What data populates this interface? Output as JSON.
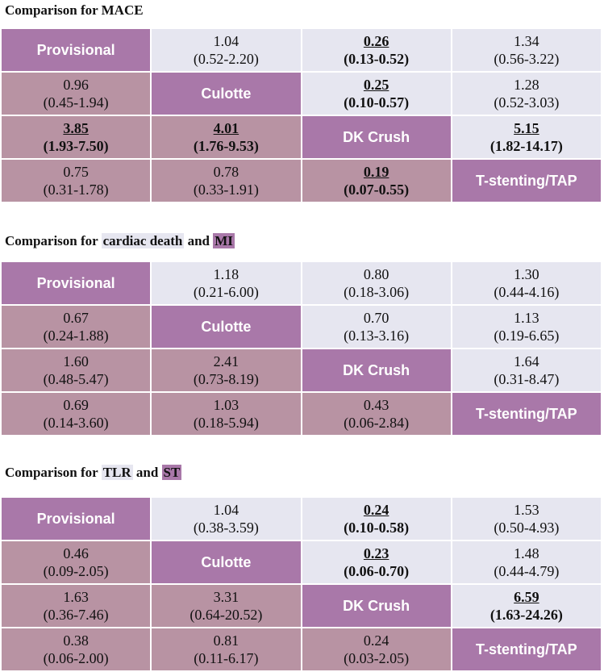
{
  "sections": [
    {
      "heading": {
        "prefix": "Comparison for MACE",
        "light_label": "",
        "join": "",
        "dark_label": ""
      },
      "treatments": [
        "Provisional",
        "Culotte",
        "DK Crush",
        "T-stenting/TAP"
      ],
      "cells": [
        [
          null,
          {
            "est": "1.04",
            "ci": "(0.52-2.20)",
            "sig": false
          },
          {
            "est": "0.26",
            "ci": "(0.13-0.52)",
            "sig": true
          },
          {
            "est": "1.34",
            "ci": "(0.56-3.22)",
            "sig": false
          }
        ],
        [
          {
            "est": "0.96",
            "ci": "(0.45-1.94)",
            "sig": false
          },
          null,
          {
            "est": "0.25",
            "ci": "(0.10-0.57)",
            "sig": true
          },
          {
            "est": "1.28",
            "ci": "(0.52-3.03)",
            "sig": false
          }
        ],
        [
          {
            "est": "3.85",
            "ci": "(1.93-7.50)",
            "sig": true
          },
          {
            "est": "4.01",
            "ci": "(1.76-9.53)",
            "sig": true
          },
          null,
          {
            "est": "5.15",
            "ci": "(1.82-14.17)",
            "sig": true
          }
        ],
        [
          {
            "est": "0.75",
            "ci": "(0.31-1.78)",
            "sig": false
          },
          {
            "est": "0.78",
            "ci": "(0.33-1.91)",
            "sig": false
          },
          {
            "est": "0.19",
            "ci": "(0.07-0.55)",
            "sig": true
          },
          null
        ]
      ]
    },
    {
      "heading": {
        "prefix": "Comparison for ",
        "light_label": "cardiac death",
        "join": " and ",
        "dark_label": "MI"
      },
      "treatments": [
        "Provisional",
        "Culotte",
        "DK Crush",
        "T-stenting/TAP"
      ],
      "cells": [
        [
          null,
          {
            "est": "1.18",
            "ci": "(0.21-6.00)",
            "sig": false
          },
          {
            "est": "0.80",
            "ci": "(0.18-3.06)",
            "sig": false
          },
          {
            "est": "1.30",
            "ci": "(0.44-4.16)",
            "sig": false
          }
        ],
        [
          {
            "est": "0.67",
            "ci": "(0.24-1.88)",
            "sig": false
          },
          null,
          {
            "est": "0.70",
            "ci": "(0.13-3.16)",
            "sig": false
          },
          {
            "est": "1.13",
            "ci": "(0.19-6.65)",
            "sig": false
          }
        ],
        [
          {
            "est": "1.60",
            "ci": "(0.48-5.47)",
            "sig": false
          },
          {
            "est": "2.41",
            "ci": "(0.73-8.19)",
            "sig": false
          },
          null,
          {
            "est": "1.64",
            "ci": "(0.31-8.47)",
            "sig": false
          }
        ],
        [
          {
            "est": "0.69",
            "ci": "(0.14-3.60)",
            "sig": false
          },
          {
            "est": "1.03",
            "ci": "(0.18-5.94)",
            "sig": false
          },
          {
            "est": "0.43",
            "ci": "(0.06-2.84)",
            "sig": false
          },
          null
        ]
      ]
    },
    {
      "heading": {
        "prefix": "Comparison for ",
        "light_label": "TLR",
        "join": " and ",
        "dark_label": "ST"
      },
      "treatments": [
        "Provisional",
        "Culotte",
        "DK Crush",
        "T-stenting/TAP"
      ],
      "cells": [
        [
          null,
          {
            "est": "1.04",
            "ci": "(0.38-3.59)",
            "sig": false
          },
          {
            "est": "0.24",
            "ci": "(0.10-0.58)",
            "sig": true
          },
          {
            "est": "1.53",
            "ci": "(0.50-4.93)",
            "sig": false
          }
        ],
        [
          {
            "est": "0.46",
            "ci": "(0.09-2.05)",
            "sig": false
          },
          null,
          {
            "est": "0.23",
            "ci": "(0.06-0.70)",
            "sig": true
          },
          {
            "est": "1.48",
            "ci": "(0.44-4.79)",
            "sig": false
          }
        ],
        [
          {
            "est": "1.63",
            "ci": "(0.36-7.46)",
            "sig": false
          },
          {
            "est": "3.31",
            "ci": "(0.64-20.52)",
            "sig": false
          },
          null,
          {
            "est": "6.59",
            "ci": "(1.63-24.26)",
            "sig": true
          }
        ],
        [
          {
            "est": "0.38",
            "ci": "(0.06-2.00)",
            "sig": false
          },
          {
            "est": "0.81",
            "ci": "(0.11-6.17)",
            "sig": false
          },
          {
            "est": "0.24",
            "ci": "(0.03-2.05)",
            "sig": false
          },
          null
        ]
      ]
    }
  ]
}
